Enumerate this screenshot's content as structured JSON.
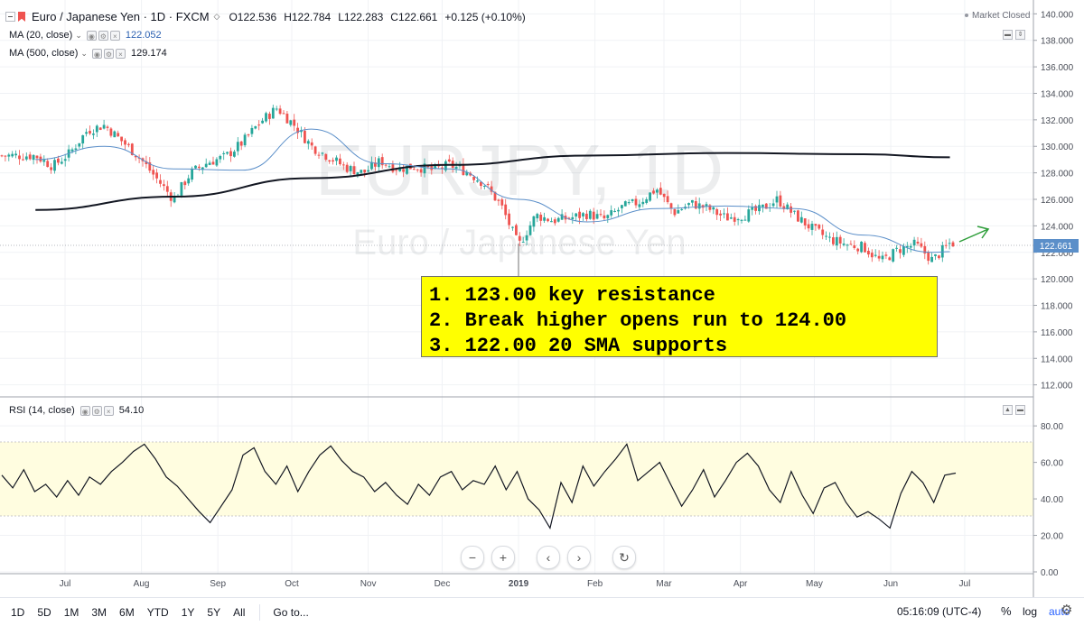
{
  "header": {
    "symbol_title": "Euro / Japanese Yen · 1D · FXCM",
    "open": "O122.536",
    "high": "H122.784",
    "low": "L122.283",
    "close": "C122.661",
    "change": "+0.125 (+0.10%)",
    "market_status": "Market Closed"
  },
  "indicators": {
    "ma20_label": "MA (20, close)",
    "ma20_value": "122.052",
    "ma500_label": "MA (500, close)",
    "ma500_value": "129.174",
    "rsi_label": "RSI (14, close)",
    "rsi_value": "54.10"
  },
  "watermark": {
    "line1": "EURJPY, 1D",
    "line2": "Euro / Japanese Yen"
  },
  "annotation": {
    "lines": [
      "1. 123.00 key resistance",
      "2. Break higher opens run to 124.00",
      "3. 122.00 20 SMA supports"
    ]
  },
  "nav": {
    "zoom_out": "−",
    "zoom_in": "+",
    "scroll_left": "‹",
    "scroll_right": "›",
    "reset": "↻"
  },
  "bottom_bar": {
    "periods": [
      "1D",
      "5D",
      "1M",
      "3M",
      "6M",
      "YTD",
      "1Y",
      "5Y",
      "All"
    ],
    "goto": "Go to...",
    "clock": "05:16:09 (UTC-4)",
    "percent": "%",
    "log": "log",
    "auto": "auto"
  },
  "colors": {
    "up_candle": "#26a69a",
    "down_candle": "#ef5350",
    "ma20": "#5b8fc9",
    "ma500": "#131722",
    "rsi_line": "#131722",
    "rsi_band": "#fffde0",
    "annotation_bg": "#ffff00",
    "arrow": "#2e9e3a"
  },
  "chart_data": [
    {
      "type": "candlestick",
      "title": "",
      "ylim": [
        111.5,
        140.5
      ],
      "yticks": [
        "140.000",
        "138.000",
        "136.000",
        "134.000",
        "132.000",
        "130.000",
        "128.000",
        "126.000",
        "124.000",
        "122.000",
        "120.000",
        "118.000",
        "116.000",
        "114.000",
        "112.000"
      ],
      "xticks": [
        "Jul",
        "Aug",
        "Sep",
        "Oct",
        "Nov",
        "Dec",
        "2019",
        "Feb",
        "Mar",
        "Apr",
        "May",
        "Jun",
        "Jul"
      ],
      "last_price_label": "122.661",
      "last_price": 122.661,
      "series": [
        {
          "name": "EURJPY",
          "x": [
            "2018-06-19",
            "2018-06-26",
            "2018-07-03",
            "2018-07-10",
            "2018-07-17",
            "2018-07-24",
            "2018-07-31",
            "2018-08-07",
            "2018-08-14",
            "2018-08-21",
            "2018-08-28",
            "2018-09-04",
            "2018-09-11",
            "2018-09-18",
            "2018-09-25",
            "2018-10-02",
            "2018-10-09",
            "2018-10-16",
            "2018-10-23",
            "2018-10-30",
            "2018-11-06",
            "2018-11-13",
            "2018-11-20",
            "2018-11-27",
            "2018-12-04",
            "2018-12-11",
            "2018-12-18",
            "2018-12-25",
            "2019-01-01",
            "2019-01-08",
            "2019-01-15",
            "2019-01-22",
            "2019-01-29",
            "2019-02-05",
            "2019-02-12",
            "2019-02-19",
            "2019-02-26",
            "2019-03-05",
            "2019-03-12",
            "2019-03-19",
            "2019-03-26",
            "2019-04-02",
            "2019-04-09",
            "2019-04-16",
            "2019-04-23",
            "2019-04-30",
            "2019-05-07",
            "2019-05-14",
            "2019-05-21",
            "2019-05-28",
            "2019-06-04",
            "2019-06-11",
            "2019-06-18",
            "2019-06-25"
          ],
          "close": [
            129.3,
            128.5,
            129.5,
            131.2,
            131.6,
            130.4,
            129.2,
            127.6,
            126.0,
            128.0,
            128.8,
            129.2,
            130.3,
            131.8,
            132.9,
            131.6,
            130.0,
            129.2,
            128.4,
            128.0,
            128.9,
            128.3,
            128.5,
            128.2,
            128.6,
            128.1,
            127.2,
            125.5,
            122.5,
            124.8,
            124.4,
            124.6,
            124.9,
            124.5,
            125.4,
            125.8,
            126.8,
            125.0,
            125.7,
            125.3,
            124.6,
            124.8,
            125.2,
            126.0,
            124.8,
            123.8,
            123.0,
            122.6,
            122.4,
            121.3,
            122.2,
            122.6,
            121.4,
            122.7
          ]
        },
        {
          "name": "MA (20, close)",
          "x": [
            "2018-06-19",
            "2018-07-17",
            "2018-08-14",
            "2018-09-11",
            "2018-10-09",
            "2018-11-06",
            "2018-12-04",
            "2019-01-01",
            "2019-01-29",
            "2019-02-26",
            "2019-03-26",
            "2019-04-23",
            "2019-05-21",
            "2019-06-18",
            "2019-06-25"
          ],
          "values": [
            129.0,
            130.0,
            128.3,
            128.2,
            131.3,
            128.7,
            128.3,
            126.0,
            124.3,
            125.3,
            125.5,
            125.3,
            123.3,
            122.0,
            122.05
          ]
        },
        {
          "name": "MA (500, close)",
          "x": [
            "2018-06-19",
            "2018-08-14",
            "2018-10-09",
            "2018-12-04",
            "2019-01-29",
            "2019-03-26",
            "2019-05-21",
            "2019-06-25"
          ],
          "values": [
            125.2,
            126.2,
            127.6,
            128.6,
            129.3,
            129.5,
            129.4,
            129.17
          ]
        }
      ]
    },
    {
      "type": "line",
      "title": "",
      "ylim": [
        0,
        86
      ],
      "yticks": [
        "80.00",
        "60.00",
        "40.00",
        "20.00",
        "0.00"
      ],
      "band": [
        30,
        70
      ],
      "series": [
        {
          "name": "RSI (14, close)",
          "values": [
            53,
            46,
            56,
            44,
            48,
            41,
            50,
            42,
            52,
            48,
            55,
            60,
            66,
            70,
            62,
            52,
            47,
            40,
            33,
            27,
            36,
            45,
            64,
            68,
            55,
            48,
            58,
            44,
            55,
            64,
            69,
            61,
            55,
            52,
            44,
            49,
            42,
            37,
            48,
            42,
            52,
            55,
            45,
            50,
            48,
            58,
            45,
            55,
            40,
            34,
            24,
            49,
            38,
            58,
            47,
            55,
            62,
            70,
            50,
            55,
            60,
            48,
            36,
            45,
            56,
            41,
            50,
            60,
            65,
            58,
            45,
            38,
            55,
            42,
            32,
            46,
            49,
            38,
            30,
            33,
            29,
            24,
            43,
            55,
            49,
            38,
            53,
            54.1
          ]
        }
      ]
    }
  ]
}
